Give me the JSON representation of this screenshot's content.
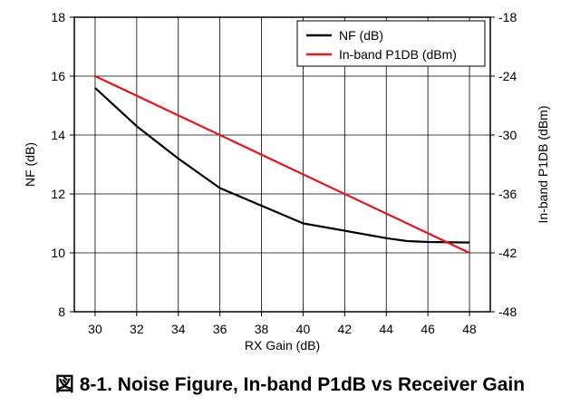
{
  "caption": "図 8-1. Noise Figure, In-band P1dB vs Receiver Gain",
  "chart_data": {
    "type": "line",
    "title": "",
    "xlabel": "RX Gain (dB)",
    "ylabel_left": "NF (dB)",
    "ylabel_right": "In-band P1DB (dBm)",
    "xlim": [
      29,
      49
    ],
    "x_ticks": [
      30,
      32,
      34,
      36,
      38,
      40,
      42,
      44,
      46,
      48
    ],
    "ylim_left": [
      8,
      18
    ],
    "y_ticks_left": [
      8,
      10,
      12,
      14,
      16,
      18
    ],
    "ylim_right": [
      -48,
      -18
    ],
    "y_ticks_right": [
      -48,
      -42,
      -36,
      -30,
      -24,
      -18
    ],
    "grid": true,
    "legend_position": "top-right",
    "series": [
      {
        "name": "NF (dB)",
        "axis": "left",
        "color": "#000000",
        "x": [
          30,
          32,
          34,
          36,
          38,
          40,
          42,
          44,
          45,
          46,
          48
        ],
        "y": [
          15.6,
          14.3,
          13.2,
          12.2,
          11.6,
          11.0,
          10.75,
          10.5,
          10.4,
          10.37,
          10.35
        ]
      },
      {
        "name": "In-band P1DB (dBm)",
        "axis": "right",
        "color": "#e8141c",
        "x": [
          30,
          48
        ],
        "y": [
          -24,
          -42
        ]
      }
    ]
  }
}
